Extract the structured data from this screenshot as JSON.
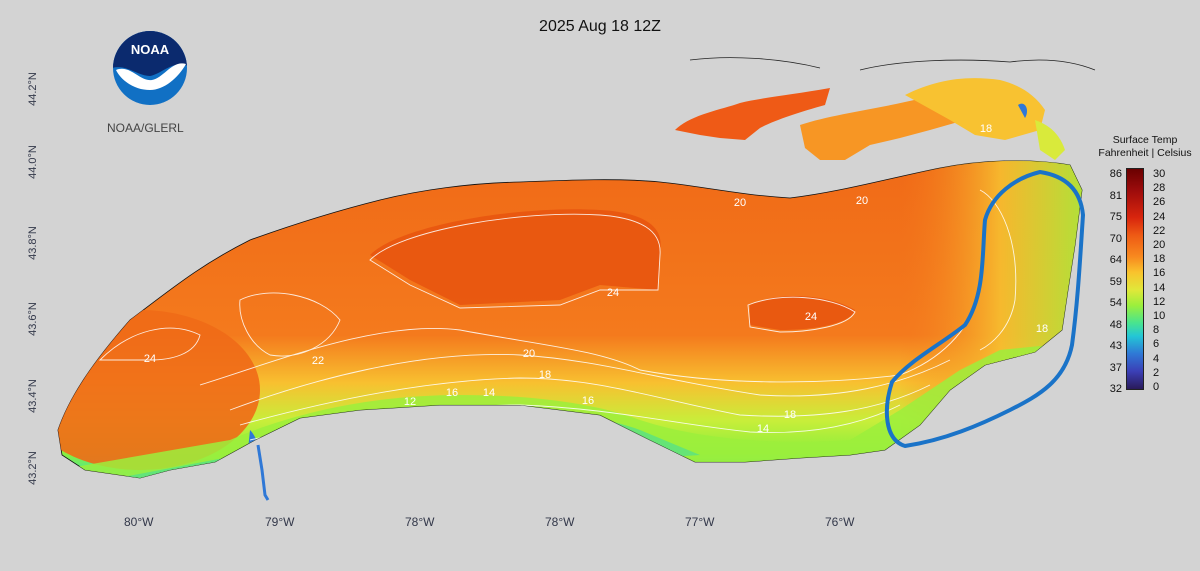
{
  "map": {
    "title": "2025 Aug 18 12Z",
    "credit": "NOAA/GLERL",
    "logo_text": "NOAA",
    "lat_labels": [
      "44.2°N",
      "44.0°N",
      "43.8°N",
      "43.6°N",
      "43.4°N",
      "43.2°N"
    ],
    "lon_labels": [
      "80°W",
      "79°W",
      "78°W",
      "78°W",
      "77°W",
      "76°W"
    ],
    "contour_labels": [
      "24",
      "22",
      "24",
      "24",
      "20",
      "20",
      "18",
      "18",
      "16",
      "16",
      "14",
      "14",
      "12",
      "20",
      "18",
      "18"
    ],
    "highlight_color": "#1a73c8"
  },
  "legend": {
    "title_line1": "Surface Temp",
    "title_line2": "Fahrenheit | Celsius",
    "fahrenheit": [
      "86",
      "81",
      "75",
      "70",
      "64",
      "59",
      "54",
      "48",
      "43",
      "37",
      "32"
    ],
    "celsius": [
      "30",
      "28",
      "26",
      "24",
      "22",
      "20",
      "18",
      "16",
      "14",
      "12",
      "10",
      "8",
      "6",
      "4",
      "2",
      "0"
    ]
  }
}
